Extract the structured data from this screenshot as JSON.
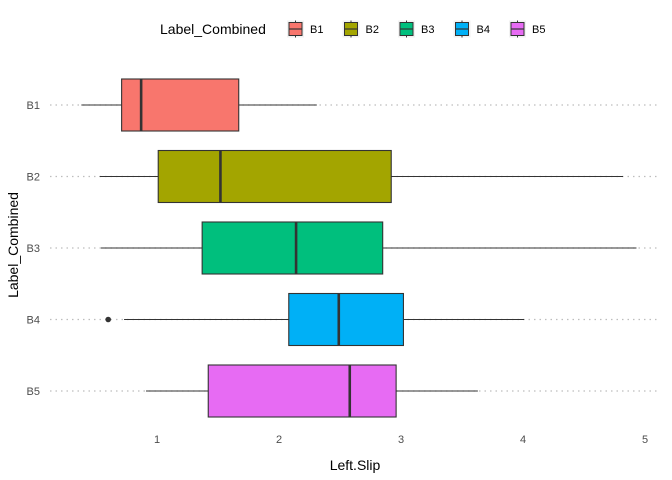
{
  "chart_data": {
    "type": "boxplot",
    "orientation": "horizontal",
    "xlabel": "Left.Slip",
    "ylabel": "Label_Combined",
    "xlim": [
      0.2,
      5.0
    ],
    "x_ticks": [
      1,
      2,
      3,
      4,
      5
    ],
    "grid": "dotted-major-y",
    "legend": {
      "title": "Label_Combined",
      "position": "top"
    },
    "categories": [
      "B1",
      "B2",
      "B3",
      "B4",
      "B5"
    ],
    "boxes": [
      {
        "label": "B1",
        "color": "#F8766D",
        "whisker_low": 0.38,
        "q1": 0.71,
        "median": 0.87,
        "q3": 1.67,
        "whisker_high": 2.31,
        "outliers": []
      },
      {
        "label": "B2",
        "color": "#A3A500",
        "whisker_low": 0.53,
        "q1": 1.01,
        "median": 1.52,
        "q3": 2.92,
        "whisker_high": 4.82,
        "outliers": []
      },
      {
        "label": "B3",
        "color": "#00BF7D",
        "whisker_low": 0.54,
        "q1": 1.37,
        "median": 2.14,
        "q3": 2.85,
        "whisker_high": 4.93,
        "outliers": []
      },
      {
        "label": "B4",
        "color": "#00B0F6",
        "whisker_low": 0.73,
        "q1": 2.08,
        "median": 2.49,
        "q3": 3.02,
        "whisker_high": 4.01,
        "outliers": [
          0.6
        ]
      },
      {
        "label": "B5",
        "color": "#E76BF3",
        "whisker_low": 0.91,
        "q1": 1.42,
        "median": 2.58,
        "q3": 2.96,
        "whisker_high": 3.63,
        "outliers": []
      }
    ]
  }
}
